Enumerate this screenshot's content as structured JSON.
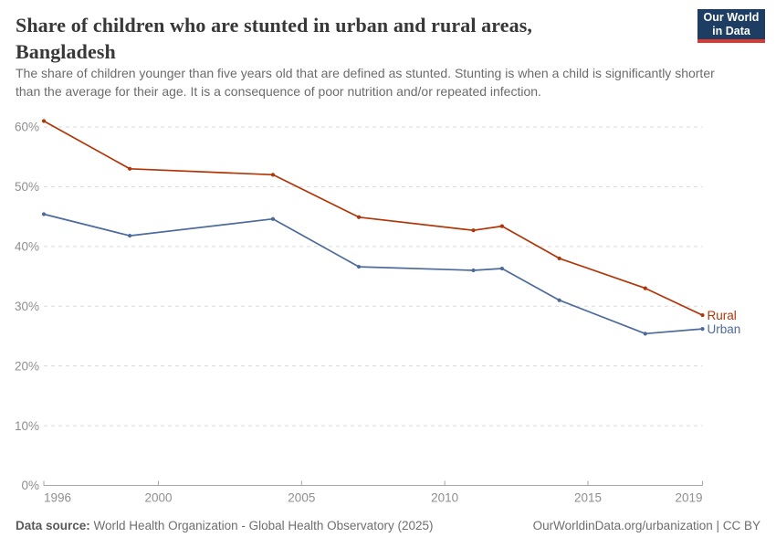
{
  "header": {
    "title": "Share of children who are stunted in urban and rural areas, Bangladesh",
    "subtitle": "The share of children younger than five years old that are defined as stunted. Stunting is when a child is significantly shorter than the average for their age. It is a consequence of poor nutrition and/or repeated infection."
  },
  "logo": {
    "line1": "Our World",
    "line2": "in Data"
  },
  "chart_data": {
    "type": "line",
    "title": "Share of children who are stunted in urban and rural areas, Bangladesh",
    "x": [
      1996,
      1999,
      2004,
      2007,
      2011,
      2012,
      2014,
      2017,
      2019
    ],
    "series": [
      {
        "name": "Rural",
        "color": "#B13507",
        "values": [
          61.0,
          53.0,
          52.0,
          44.9,
          42.7,
          43.4,
          38.0,
          33.0,
          28.5
        ]
      },
      {
        "name": "Urban",
        "color": "#4C6A9C",
        "values": [
          45.4,
          41.8,
          44.6,
          36.6,
          36.0,
          36.3,
          31.0,
          25.4,
          26.2
        ]
      }
    ],
    "xlim": [
      1996,
      2019
    ],
    "ylim": [
      0,
      60
    ],
    "yticks": [
      0,
      10,
      20,
      30,
      40,
      50,
      60
    ],
    "ytick_suffix": "%",
    "xticks": [
      1996,
      2000,
      2005,
      2010,
      2015,
      2019
    ],
    "grid": "horizontal-dashed",
    "legend_position": "end-of-line",
    "marker": "dot"
  },
  "footer": {
    "datasource_label": "Data source:",
    "datasource_value": "World Health Organization - Global Health Observatory (2025)",
    "link": "OurWorldinData.org/urbanization | CC BY"
  },
  "colors": {
    "rural": "#B13507",
    "urban": "#4C6A9C",
    "logo_bg": "#1D3D63",
    "logo_underline": "#D93B32",
    "grid": "#DADADA",
    "axis": "#A6A6A6",
    "tick_label": "#8F8F8F",
    "title_text": "#383838",
    "subtitle_text": "#6B6B6B"
  }
}
